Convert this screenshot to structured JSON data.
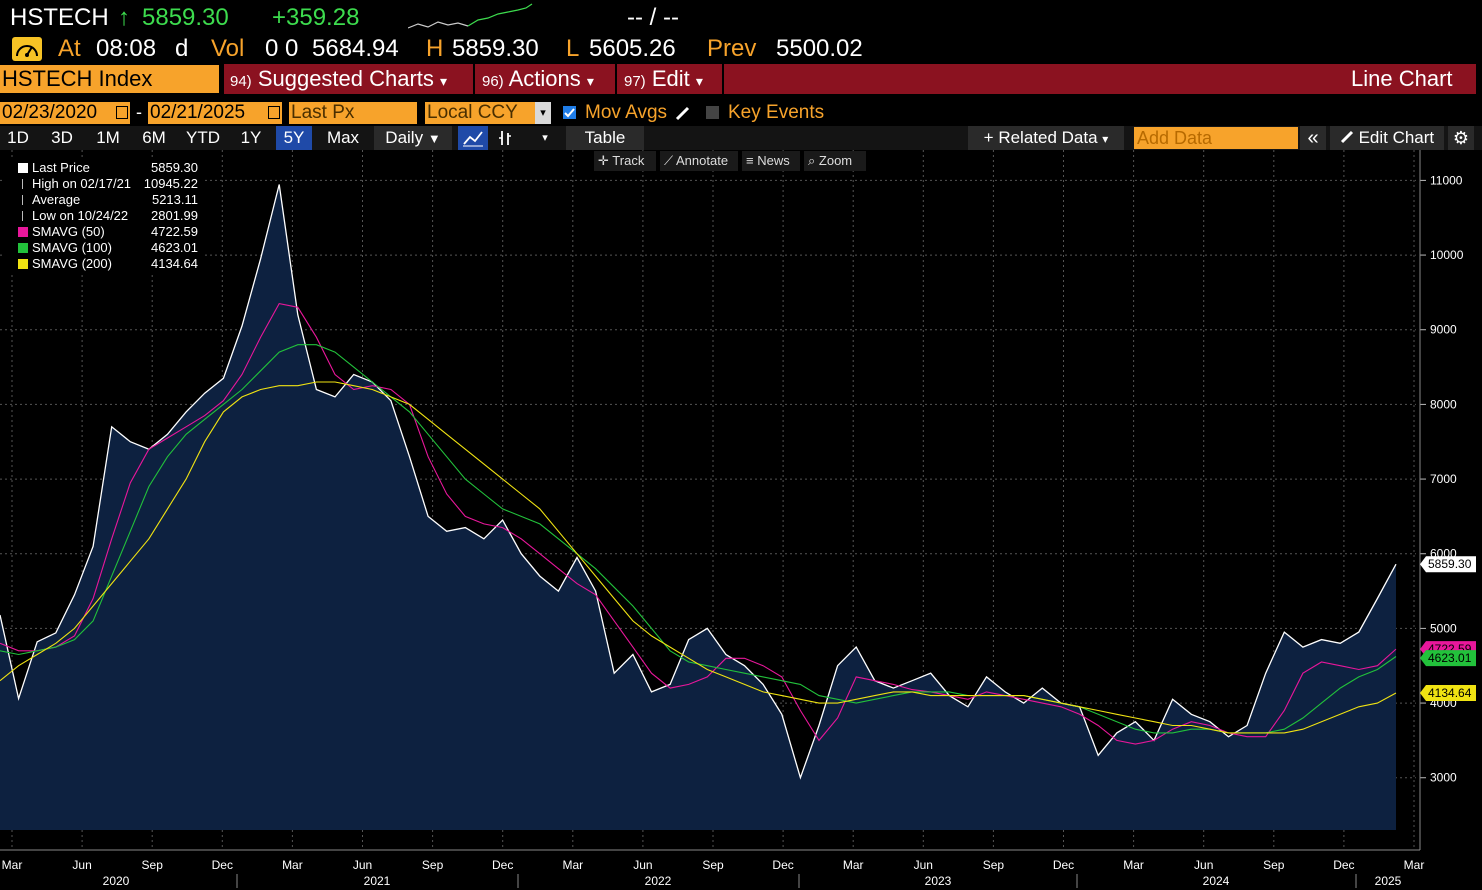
{
  "header": {
    "ticker": "HSTECH",
    "up_arrow": "↑",
    "last": "5859.30",
    "change": "+359.28",
    "dashes": "-- / --",
    "clock_icon": "gauge-icon",
    "at_label": "At",
    "time": "08:08",
    "d_label": "d",
    "vol_label": "Vol",
    "vol_values": "0 0",
    "open": "5684.94",
    "h_label": "H",
    "high": "5859.30",
    "l_label": "L",
    "low": "5605.26",
    "prev_label": "Prev",
    "prev": "5500.02"
  },
  "toolbar": {
    "security": "HSTECH Index",
    "suggested_num": "94)",
    "suggested": "Suggested Charts",
    "actions_num": "96)",
    "actions": "Actions",
    "edit_num": "97)",
    "edit": "Edit",
    "dropdown_arrow": "▾",
    "chart_type": "Line Chart"
  },
  "settings": {
    "start_date": "02/23/2020",
    "dash": "-",
    "end_date": "02/21/2025",
    "field": "Last Px",
    "currency": "Local CCY",
    "mov_avgs": "Mov Avgs",
    "mov_avgs_checked": true,
    "key_events": "Key Events",
    "key_events_checked": false
  },
  "ranges": {
    "items": [
      "1D",
      "3D",
      "1M",
      "6M",
      "YTD",
      "1Y",
      "5Y",
      "Max"
    ],
    "active": "5Y",
    "frequency": "Daily",
    "table": "Table",
    "related": "Related Data",
    "add_data_placeholder": "Add Data",
    "edit_chart": "Edit Chart",
    "plus": "+",
    "collapse": "«"
  },
  "chart_tools": [
    "Track",
    "Annotate",
    "News",
    "Zoom"
  ],
  "legend": [
    {
      "label": "Last Price",
      "value": "5859.30",
      "color": "#ffffff",
      "icon": "square"
    },
    {
      "label": "High on 02/17/21",
      "value": "10945.22",
      "color": "#bbbbbb",
      "icon": "high-marker"
    },
    {
      "label": "Average",
      "value": "5213.11",
      "color": "#bbbbbb",
      "icon": "average-marker"
    },
    {
      "label": "Low on 10/24/22",
      "value": "2801.99",
      "color": "#bbbbbb",
      "icon": "low-marker"
    },
    {
      "label": "SMAVG (50)",
      "value": "4722.59",
      "color": "#e8179b",
      "icon": "square"
    },
    {
      "label": "SMAVG (100)",
      "value": "4623.01",
      "color": "#22c13b",
      "icon": "square"
    },
    {
      "label": "SMAVG (200)",
      "value": "4134.64",
      "color": "#f0e312",
      "icon": "square"
    }
  ],
  "chart_data": {
    "type": "line",
    "ylim": [
      2300,
      11300
    ],
    "y_ticks": [
      3000,
      4000,
      5000,
      6000,
      7000,
      8000,
      9000,
      10000,
      11000
    ],
    "x_month_labels": [
      "Mar",
      "Jun",
      "Sep",
      "Dec",
      "Mar",
      "Jun",
      "Sep",
      "Dec",
      "Mar",
      "Jun",
      "Sep",
      "Dec",
      "Mar",
      "Jun",
      "Sep",
      "Dec",
      "Mar",
      "Jun",
      "Sep",
      "Dec",
      "Mar"
    ],
    "x_year_labels": [
      "2020",
      "2021",
      "2022",
      "2023",
      "2024",
      "2025"
    ],
    "tags": [
      {
        "text": "5859.30",
        "color": "#ffffff",
        "value": 5859.3
      },
      {
        "text": "4722.59",
        "color": "#e8179b",
        "value": 4722.59
      },
      {
        "text": "4623.01",
        "color": "#22c13b",
        "value": 4623.01
      },
      {
        "text": "4134.64",
        "color": "#f0e312",
        "value": 4134.64
      }
    ],
    "series": [
      {
        "name": "Last Price",
        "color": "#ffffff",
        "values": [
          5180,
          4060,
          4820,
          4940,
          5450,
          6100,
          7700,
          7500,
          7400,
          7600,
          7900,
          8150,
          8350,
          9050,
          9950,
          10945,
          9200,
          8200,
          8100,
          8400,
          8300,
          8050,
          7300,
          6500,
          6300,
          6350,
          6200,
          6450,
          6000,
          5700,
          5500,
          5950,
          5500,
          4400,
          4650,
          4150,
          4250,
          4850,
          5000,
          4650,
          4500,
          4250,
          3850,
          3000,
          3700,
          4500,
          4750,
          4300,
          4200,
          4300,
          4400,
          4100,
          3950,
          4350,
          4150,
          4000,
          4200,
          4000,
          3950,
          3300,
          3600,
          3750,
          3500,
          4050,
          3850,
          3750,
          3550,
          3700,
          4400,
          4950,
          4750,
          4850,
          4800,
          4950,
          5400,
          5859.3
        ]
      },
      {
        "name": "SMAVG (50)",
        "color": "#e8179b",
        "values": [
          4800,
          4700,
          4700,
          4750,
          4900,
          5400,
          6200,
          6950,
          7400,
          7550,
          7700,
          7850,
          8050,
          8400,
          8900,
          9350,
          9300,
          8900,
          8400,
          8200,
          8250,
          8200,
          8000,
          7300,
          6800,
          6500,
          6400,
          6350,
          6200,
          6000,
          5800,
          5600,
          5450,
          5100,
          4750,
          4400,
          4200,
          4250,
          4350,
          4600,
          4600,
          4500,
          4350,
          3900,
          3500,
          3800,
          4350,
          4300,
          4250,
          4180,
          4150,
          4100,
          4050,
          4150,
          4100,
          4050,
          4000,
          3950,
          3850,
          3700,
          3500,
          3450,
          3500,
          3650,
          3750,
          3700,
          3600,
          3550,
          3550,
          3900,
          4400,
          4550,
          4500,
          4450,
          4500,
          4722.59
        ]
      },
      {
        "name": "SMAVG (100)",
        "color": "#22c13b",
        "values": [
          4700,
          4650,
          4700,
          4750,
          4850,
          5100,
          5700,
          6300,
          6900,
          7300,
          7600,
          7800,
          8000,
          8200,
          8450,
          8700,
          8800,
          8800,
          8700,
          8500,
          8300,
          8100,
          7900,
          7600,
          7300,
          7000,
          6800,
          6600,
          6500,
          6400,
          6200,
          6000,
          5800,
          5550,
          5300,
          5000,
          4700,
          4550,
          4500,
          4450,
          4400,
          4350,
          4300,
          4250,
          4100,
          4050,
          4000,
          4050,
          4100,
          4150,
          4150,
          4150,
          4100,
          4100,
          4100,
          4100,
          4050,
          4000,
          3950,
          3850,
          3750,
          3650,
          3600,
          3600,
          3650,
          3650,
          3600,
          3600,
          3600,
          3650,
          3800,
          4000,
          4200,
          4350,
          4450,
          4623.01
        ]
      },
      {
        "name": "SMAVG (200)",
        "color": "#f0e312",
        "values": [
          4300,
          4500,
          4650,
          4800,
          5000,
          5300,
          5600,
          5900,
          6200,
          6600,
          7000,
          7500,
          7900,
          8100,
          8200,
          8250,
          8250,
          8300,
          8300,
          8250,
          8200,
          8100,
          8000,
          7800,
          7600,
          7400,
          7200,
          7000,
          6800,
          6600,
          6300,
          6000,
          5700,
          5400,
          5100,
          4900,
          4750,
          4600,
          4450,
          4350,
          4250,
          4150,
          4100,
          4050,
          4000,
          4000,
          4050,
          4100,
          4150,
          4150,
          4100,
          4100,
          4100,
          4100,
          4100,
          4100,
          4050,
          4000,
          3950,
          3900,
          3850,
          3800,
          3750,
          3700,
          3700,
          3650,
          3600,
          3600,
          3600,
          3600,
          3650,
          3750,
          3850,
          3950,
          4000,
          4134.64
        ]
      }
    ]
  }
}
